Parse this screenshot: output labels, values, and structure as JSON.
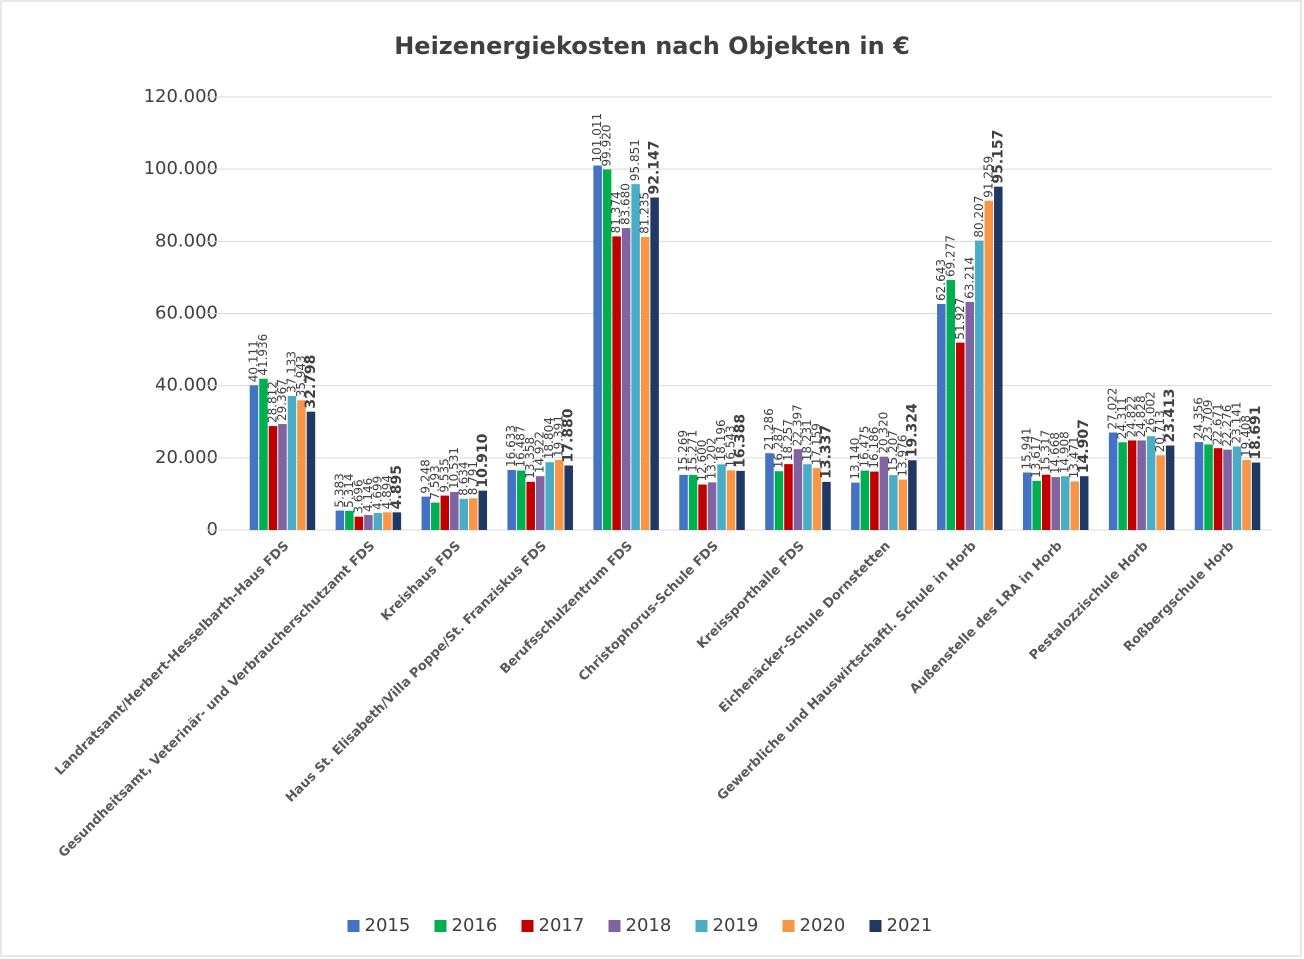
{
  "chart_data": {
    "type": "bar",
    "title": "Heizenergiekosten nach Objekten in €",
    "categories": [
      "Landratsamt/Herbert-Hesselbarth-Haus FDS",
      "Gesundheitsamt, Veterinär- und Verbraucherschutzamt FDS",
      "Kreishaus FDS",
      "Haus St. Elisabeth/Villa Poppe/St. Franziskus FDS",
      "Berufsschulzentrum FDS",
      "Christophorus-Schule FDS",
      "Kreissporthalle FDS",
      "Eichenäcker-Schule Dornstetten",
      "Gewerbliche und Hauswirtschaftl. Schule in Horb",
      "Außenstelle des LRA in Horb",
      "Pestalozzischule Horb",
      "Roßbergschule Horb"
    ],
    "series": [
      {
        "name": "2015",
        "color": "#4472c4",
        "values": [
          40111,
          5383,
          9248,
          16633,
          101011,
          15269,
          21286,
          13140,
          62643,
          15941,
          27022,
          24356
        ],
        "value_labels": [
          "40.111",
          "5.383",
          "9.248",
          "16.633",
          "101.011",
          "15.269",
          "21.286",
          "13.140",
          "62.643",
          "15.941",
          "27.022",
          "24.356"
        ]
      },
      {
        "name": "2016",
        "color": "#00b050",
        "values": [
          41936,
          5314,
          7593,
          16487,
          99920,
          15271,
          16287,
          16475,
          69277,
          13617,
          24311,
          23709
        ],
        "value_labels": [
          "41.936",
          "5.314",
          "7.593",
          "16.487",
          "99.920",
          "15.271",
          "16.287",
          "16.475",
          "69.277",
          "13.617",
          "24.311",
          "23.709"
        ]
      },
      {
        "name": "2017",
        "color": "#c00000",
        "values": [
          28812,
          3696,
          9535,
          13358,
          81374,
          12600,
          18257,
          16186,
          51927,
          15317,
          24822,
          22671
        ],
        "value_labels": [
          "28.812",
          "3.696",
          "9.535",
          "13.358",
          "81.374",
          "12.600",
          "18.257",
          "16.186",
          "51.927",
          "15.317",
          "24.822",
          "22.671"
        ]
      },
      {
        "name": "2018",
        "color": "#8064a2",
        "values": [
          29367,
          4146,
          10531,
          14922,
          83680,
          13202,
          22397,
          20320,
          63214,
          14668,
          24828,
          22276
        ],
        "value_labels": [
          "29.367",
          "4.146",
          "10.531",
          "14.922",
          "83.680",
          "13.202",
          "22.397",
          "20.320",
          "63.214",
          "14.668",
          "24.828",
          "22.276"
        ]
      },
      {
        "name": "2019",
        "color": "#4bacc6",
        "values": [
          37133,
          4699,
          8634,
          18804,
          95851,
          18196,
          18231,
          15207,
          80207,
          14908,
          26002,
          23141
        ],
        "value_labels": [
          "37.133",
          "4.699",
          "8.634",
          "18.804",
          "95.851",
          "18.196",
          "18.231",
          "15.207",
          "80.207",
          "14.908",
          "26.002",
          "23.141"
        ]
      },
      {
        "name": "2020",
        "color": "#f79646",
        "values": [
          35943,
          4894,
          8791,
          19391,
          81235,
          16543,
          17159,
          13976,
          91259,
          13471,
          20713,
          19408
        ],
        "value_labels": [
          "35.943",
          "4.894",
          "8.791",
          "19.391",
          "81.235",
          "16.543",
          "17.159",
          "13.976",
          "91.259",
          "13.471",
          "20.713",
          "19.408"
        ]
      },
      {
        "name": "2021",
        "color": "#1f3864",
        "bold_labels": true,
        "values": [
          32798,
          4895,
          10910,
          17880,
          92147,
          16388,
          13337,
          19324,
          95157,
          14907,
          23413,
          18691
        ],
        "value_labels": [
          "32.798",
          "4.895",
          "10.910",
          "17.880",
          "92.147",
          "16.388",
          "13.337",
          "19.324",
          "95.157",
          "14.907",
          "23.413",
          "18.691"
        ]
      }
    ],
    "ylim": [
      0,
      120000
    ],
    "yticks": [
      0,
      {
        "value": 20000,
        "label": "20.000"
      },
      {
        "value": 40000,
        "label": "40.000"
      },
      {
        "value": 60000,
        "label": "60.000"
      },
      {
        "value": 80000,
        "label": "80.000"
      },
      {
        "value": 100000,
        "label": "100.000"
      },
      {
        "value": 120000,
        "label": "120.000"
      }
    ],
    "grid": true,
    "legend": "bottom"
  }
}
